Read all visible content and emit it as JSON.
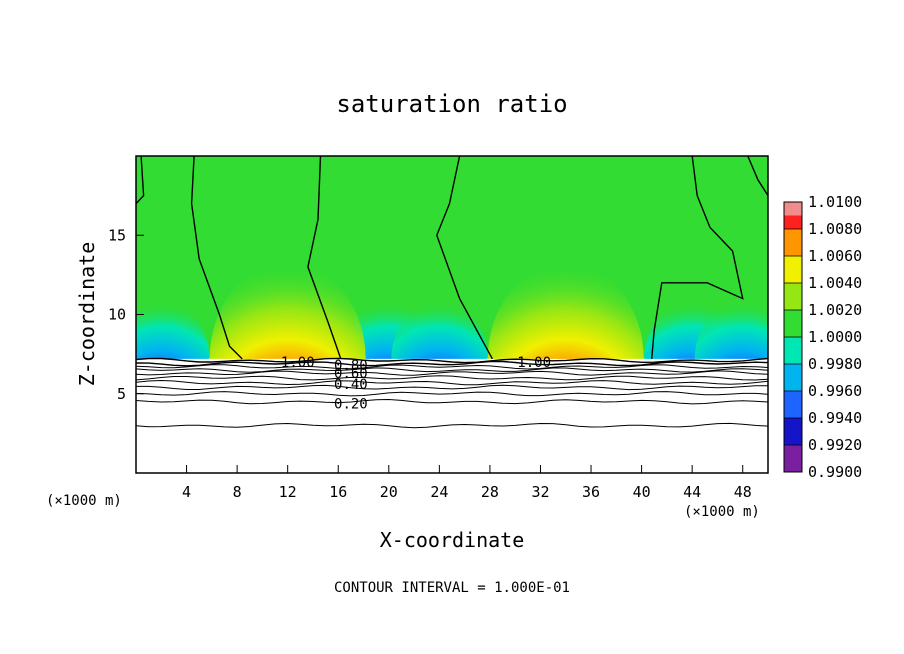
{
  "chart_data": {
    "type": "heatmap",
    "title": "saturation ratio",
    "xlabel": "X-coordinate",
    "ylabel": "Z-coordinate",
    "x_unit": "(×1000 m)",
    "x_unit_right": "(×1000 m)",
    "xlim": [
      0,
      50
    ],
    "ylim": [
      0,
      20
    ],
    "x_ticks": [
      4,
      8,
      12,
      16,
      20,
      24,
      28,
      32,
      36,
      40,
      44,
      48
    ],
    "y_ticks": [
      5,
      10,
      15
    ],
    "footer": "CONTOUR INTERVAL = 1.000E-01",
    "colorbar": {
      "levels": [
        "0.9900",
        "0.9920",
        "0.9940",
        "0.9960",
        "0.9980",
        "1.0000",
        "1.0020",
        "1.0040",
        "1.0060",
        "1.0080",
        "1.0100"
      ],
      "colors": [
        "#7a1fa0",
        "#1414c8",
        "#1e64ff",
        "#00b4f0",
        "#00e6b4",
        "#32dc32",
        "#96e614",
        "#f0f000",
        "#ff9600",
        "#ff2020",
        "#f08c8c"
      ]
    },
    "contour_labels": [
      {
        "text": "1.00",
        "x": 12.8,
        "y": 7.0
      },
      {
        "text": "0.80",
        "x": 17.0,
        "y": 6.8
      },
      {
        "text": "0.60",
        "x": 17.0,
        "y": 6.3
      },
      {
        "text": "0.40",
        "x": 17.0,
        "y": 5.6
      },
      {
        "text": "0.20",
        "x": 17.0,
        "y": 4.4
      },
      {
        "text": "1.00",
        "x": 31.5,
        "y": 7.0
      }
    ],
    "contour_levels_below": [
      7.1,
      6.9,
      6.7,
      6.5,
      6.3,
      6.0,
      5.7,
      5.4,
      5.0,
      4.5,
      3.0
    ],
    "maxima_centers_x": [
      12,
      34
    ],
    "minima_centers_x": [
      2,
      20,
      24,
      44,
      48
    ]
  }
}
